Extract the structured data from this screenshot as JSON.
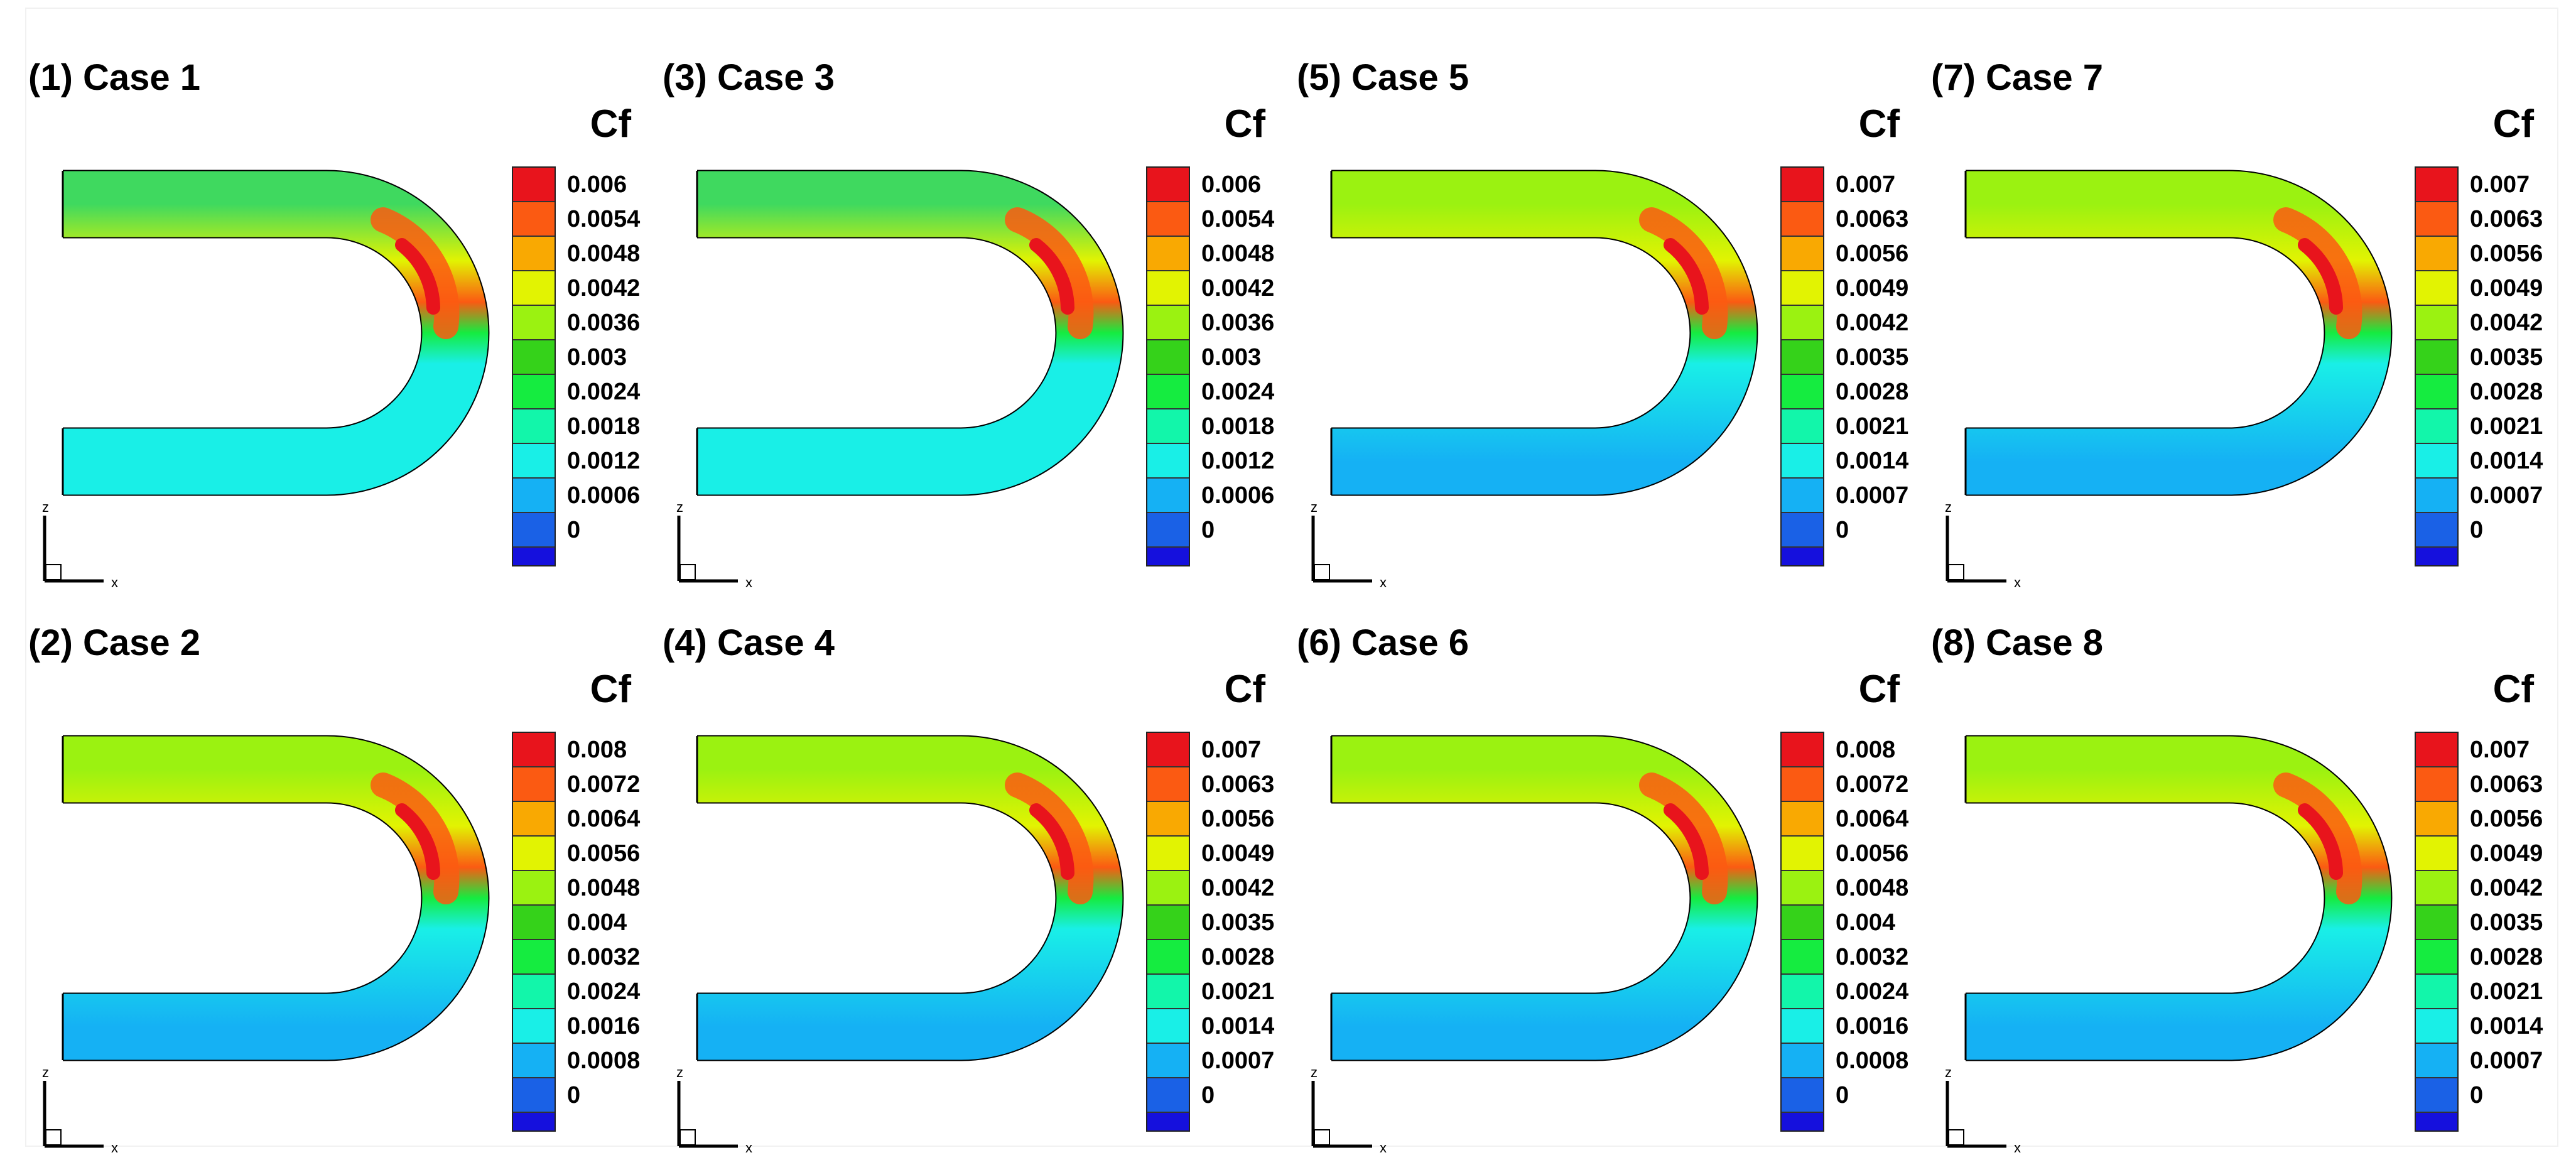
{
  "colorbar_colors": [
    "#e8141c",
    "#fb5a12",
    "#f9a902",
    "#e2f302",
    "#9bf211",
    "#35d21a",
    "#15ec40",
    "#12f6aa",
    "#19efe7",
    "#15b1f4",
    "#1a61e6",
    "#1510dd"
  ],
  "panels": [
    {
      "id": "p1",
      "title": "(1) Case 1",
      "legend_title": "Cf",
      "ticks": [
        "0.006",
        "0.0054",
        "0.0048",
        "0.0042",
        "0.0036",
        "0.003",
        "0.0024",
        "0.0018",
        "0.0012",
        "0.0006",
        "0"
      ],
      "inlet_color": "#3fd95f",
      "outlet_color": "#19efe7",
      "axis_z": "z",
      "axis_x": "x"
    },
    {
      "id": "p3",
      "title": "(3) Case 3",
      "legend_title": "Cf",
      "ticks": [
        "0.006",
        "0.0054",
        "0.0048",
        "0.0042",
        "0.0036",
        "0.003",
        "0.0024",
        "0.0018",
        "0.0012",
        "0.0006",
        "0"
      ],
      "inlet_color": "#3fd95f",
      "outlet_color": "#19efe7",
      "axis_z": "z",
      "axis_x": "x"
    },
    {
      "id": "p5",
      "title": "(5) Case 5",
      "legend_title": "Cf",
      "ticks": [
        "0.007",
        "0.0063",
        "0.0056",
        "0.0049",
        "0.0042",
        "0.0035",
        "0.0028",
        "0.0021",
        "0.0014",
        "0.0007",
        "0"
      ],
      "inlet_color": "#9bf211",
      "outlet_color": "#15b1f4",
      "axis_z": "z",
      "axis_x": "x"
    },
    {
      "id": "p7",
      "title": "(7) Case 7",
      "legend_title": "Cf",
      "ticks": [
        "0.007",
        "0.0063",
        "0.0056",
        "0.0049",
        "0.0042",
        "0.0035",
        "0.0028",
        "0.0021",
        "0.0014",
        "0.0007",
        "0"
      ],
      "inlet_color": "#9bf211",
      "outlet_color": "#15b1f4",
      "axis_z": "z",
      "axis_x": "x"
    },
    {
      "id": "p2",
      "title": "(2) Case 2",
      "legend_title": "Cf",
      "ticks": [
        "0.008",
        "0.0072",
        "0.0064",
        "0.0056",
        "0.0048",
        "0.004",
        "0.0032",
        "0.0024",
        "0.0016",
        "0.0008",
        "0"
      ],
      "inlet_color": "#9bf211",
      "outlet_color": "#15b1f4",
      "axis_z": "z",
      "axis_x": "x"
    },
    {
      "id": "p4",
      "title": "(4) Case 4",
      "legend_title": "Cf",
      "ticks": [
        "0.007",
        "0.0063",
        "0.0056",
        "0.0049",
        "0.0042",
        "0.0035",
        "0.0028",
        "0.0021",
        "0.0014",
        "0.0007",
        "0"
      ],
      "inlet_color": "#9bf211",
      "outlet_color": "#15b1f4",
      "axis_z": "z",
      "axis_x": "x"
    },
    {
      "id": "p6",
      "title": "(6) Case 6",
      "legend_title": "Cf",
      "ticks": [
        "0.008",
        "0.0072",
        "0.0064",
        "0.0056",
        "0.0048",
        "0.004",
        "0.0032",
        "0.0024",
        "0.0016",
        "0.0008",
        "0"
      ],
      "inlet_color": "#9bf211",
      "outlet_color": "#15b1f4",
      "axis_z": "z",
      "axis_x": "x"
    },
    {
      "id": "p8",
      "title": "(8) Case 8",
      "legend_title": "Cf",
      "ticks": [
        "0.007",
        "0.0063",
        "0.0056",
        "0.0049",
        "0.0042",
        "0.0035",
        "0.0028",
        "0.0021",
        "0.0014",
        "0.0007",
        "0"
      ],
      "inlet_color": "#9bf211",
      "outlet_color": "#15b1f4",
      "axis_z": "z",
      "axis_x": "x"
    }
  ]
}
